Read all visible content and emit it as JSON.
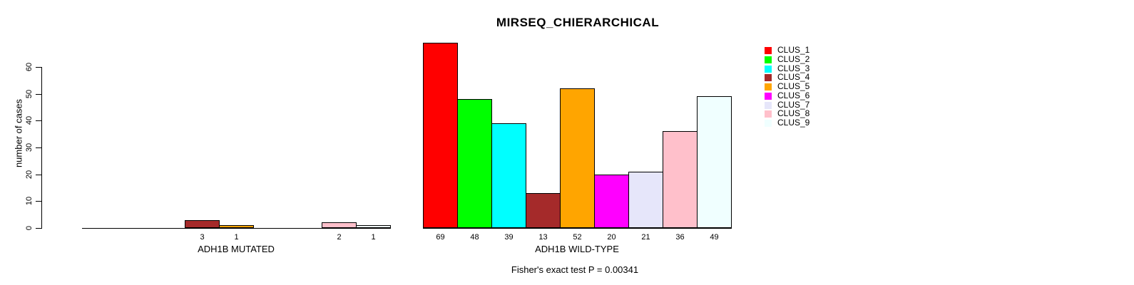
{
  "page": {
    "background": "#ffffff"
  },
  "chart_data": {
    "type": "bar",
    "title": "MIRSEQ_CHIERARCHICAL",
    "ylabel": "number of cases",
    "xlabel": "",
    "ylim": [
      0,
      60
    ],
    "yticks": [
      0,
      10,
      20,
      30,
      40,
      50,
      60
    ],
    "grid": false,
    "legend_position": "right",
    "bar_value_labels": true,
    "categories": [
      "ADH1B MUTATED",
      "ADH1B WILD-TYPE"
    ],
    "series": [
      {
        "name": "CLUS_1",
        "color": "#FF0000",
        "values": [
          0,
          69
        ]
      },
      {
        "name": "CLUS_2",
        "color": "#00FF00",
        "values": [
          0,
          48
        ]
      },
      {
        "name": "CLUS_3",
        "color": "#00FFFF",
        "values": [
          0,
          39
        ]
      },
      {
        "name": "CLUS_4",
        "color": "#A52A2A",
        "values": [
          3,
          13
        ]
      },
      {
        "name": "CLUS_5",
        "color": "#FFA500",
        "values": [
          1,
          52
        ]
      },
      {
        "name": "CLUS_6",
        "color": "#FF00FF",
        "values": [
          0,
          20
        ]
      },
      {
        "name": "CLUS_7",
        "color": "#E6E6FA",
        "values": [
          0,
          21
        ]
      },
      {
        "name": "CLUS_8",
        "color": "#FFC0CB",
        "values": [
          2,
          36
        ]
      },
      {
        "name": "CLUS_9",
        "color": "#F0FFFF",
        "values": [
          1,
          49
        ]
      }
    ],
    "annotation": "Fisher's exact test P = 0.00341"
  }
}
